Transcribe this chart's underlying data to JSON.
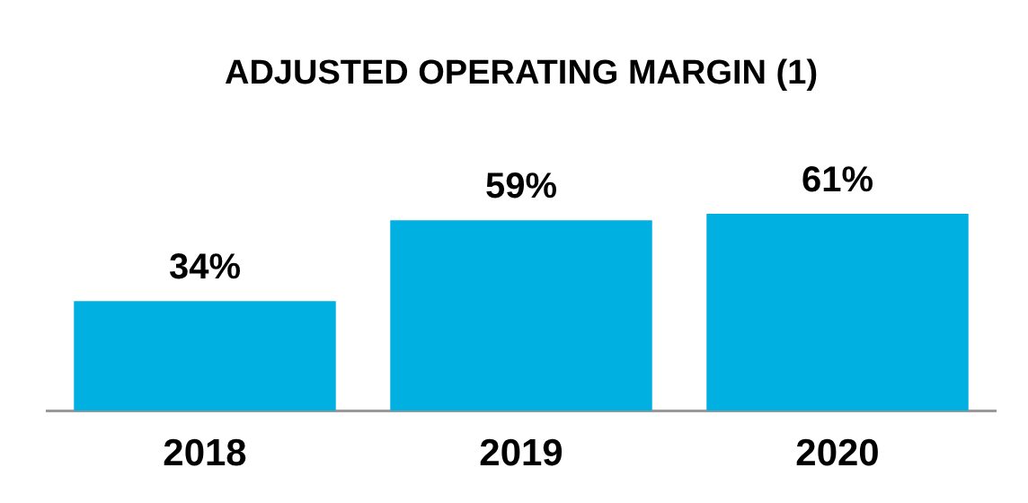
{
  "chart_data": {
    "type": "bar",
    "title": "ADJUSTED OPERATING MARGIN (1)",
    "categories": [
      "2018",
      "2019",
      "2020"
    ],
    "values": [
      34,
      59,
      61
    ],
    "value_labels": [
      "34%",
      "59%",
      "61%"
    ],
    "color": "#00b0e0"
  }
}
